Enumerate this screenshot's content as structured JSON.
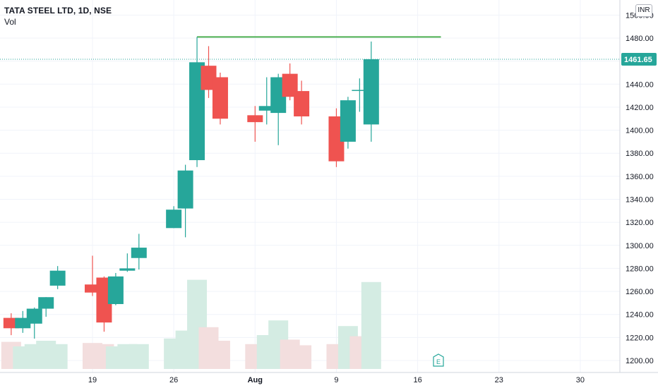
{
  "header": {
    "symbol": "TATA STEEL LTD, 1D, NSE",
    "volume_label": "Vol"
  },
  "currency": "INR",
  "last_price_label": "1461.65",
  "earnings_marker": "E",
  "colors": {
    "up": "#26a69a",
    "down": "#ef5350",
    "up_vol": "#d4ece3",
    "down_vol": "#f3dede",
    "resistance": "#4caf50",
    "last_price_dotted": "#26a69a",
    "grid": "#f0f3fa",
    "text": "#131722"
  },
  "chart_data": {
    "type": "candlestick",
    "title": "TATA STEEL LTD, 1D, NSE",
    "ylim": [
      1195,
      1508
    ],
    "y_ticks": [
      1200,
      1220,
      1240,
      1260,
      1280,
      1300,
      1320,
      1340,
      1360,
      1380,
      1400,
      1420,
      1440,
      1460,
      1480,
      1500
    ],
    "y_tick_labels": [
      "1200.00",
      "1220.00",
      "1240.00",
      "1260.00",
      "1280.00",
      "1300.00",
      "1320.00",
      "1340.00",
      "1360.00",
      "1380.00",
      "1400.00",
      "1420.00",
      "1440.00",
      "1460.00",
      "1480.00",
      "1500.00"
    ],
    "x_tick_labels": [
      {
        "label": "19",
        "date": "2021-07-19"
      },
      {
        "label": "26",
        "date": "2021-07-26"
      },
      {
        "label": "Aug",
        "date": "2021-08-02"
      },
      {
        "label": "9",
        "date": "2021-08-09"
      },
      {
        "label": "16",
        "date": "2021-08-16"
      },
      {
        "label": "23",
        "date": "2021-08-23"
      },
      {
        "label": "30",
        "date": "2021-08-30"
      }
    ],
    "candles": [
      {
        "date": "2021-07-12",
        "open": 1237,
        "high": 1241,
        "low": 1222,
        "close": 1228
      },
      {
        "date": "2021-07-13",
        "open": 1228,
        "high": 1243,
        "low": 1224,
        "close": 1237
      },
      {
        "date": "2021-07-14",
        "open": 1232,
        "high": 1246,
        "low": 1219,
        "close": 1245
      },
      {
        "date": "2021-07-15",
        "open": 1245,
        "high": 1255,
        "low": 1238,
        "close": 1255
      },
      {
        "date": "2021-07-16",
        "open": 1265,
        "high": 1282,
        "low": 1262,
        "close": 1278
      },
      {
        "date": "2021-07-19",
        "open": 1266,
        "high": 1291,
        "low": 1256,
        "close": 1259
      },
      {
        "date": "2021-07-20",
        "open": 1272,
        "high": 1273,
        "low": 1225,
        "close": 1233
      },
      {
        "date": "2021-07-21",
        "open": 1249,
        "high": 1276,
        "low": 1248,
        "close": 1273
      },
      {
        "date": "2021-07-22",
        "open": 1278,
        "high": 1293,
        "low": 1277,
        "close": 1280
      },
      {
        "date": "2021-07-23",
        "open": 1289,
        "high": 1310,
        "low": 1279,
        "close": 1298
      },
      {
        "date": "2021-07-26",
        "open": 1315,
        "high": 1334,
        "low": 1315,
        "close": 1331
      },
      {
        "date": "2021-07-27",
        "open": 1332,
        "high": 1370,
        "low": 1307,
        "close": 1365
      },
      {
        "date": "2021-07-28",
        "open": 1374,
        "high": 1481,
        "low": 1368,
        "close": 1459
      },
      {
        "date": "2021-07-29",
        "open": 1456,
        "high": 1473,
        "low": 1428,
        "close": 1435
      },
      {
        "date": "2021-07-30",
        "open": 1446,
        "high": 1450,
        "low": 1405,
        "close": 1410
      },
      {
        "date": "2021-08-02",
        "open": 1413,
        "high": 1421,
        "low": 1390,
        "close": 1407
      },
      {
        "date": "2021-08-03",
        "open": 1417,
        "high": 1446,
        "low": 1405,
        "close": 1421
      },
      {
        "date": "2021-08-04",
        "open": 1415,
        "high": 1449,
        "low": 1387,
        "close": 1446
      },
      {
        "date": "2021-08-05",
        "open": 1449,
        "high": 1458,
        "low": 1426,
        "close": 1429
      },
      {
        "date": "2021-08-06",
        "open": 1434,
        "high": 1443,
        "low": 1405,
        "close": 1412
      },
      {
        "date": "2021-08-09",
        "open": 1412,
        "high": 1419,
        "low": 1368,
        "close": 1373
      },
      {
        "date": "2021-08-10",
        "open": 1390,
        "high": 1429,
        "low": 1384,
        "close": 1426
      },
      {
        "date": "2021-08-11",
        "open": 1435,
        "high": 1445,
        "low": 1416,
        "close": 1435
      },
      {
        "date": "2021-08-12",
        "open": 1405,
        "high": 1477,
        "low": 1390,
        "close": 1461.65
      }
    ],
    "volume": [
      {
        "date": "2021-07-12",
        "value": 24,
        "dir": "down"
      },
      {
        "date": "2021-07-13",
        "value": 20,
        "dir": "up"
      },
      {
        "date": "2021-07-14",
        "value": 22,
        "dir": "up"
      },
      {
        "date": "2021-07-15",
        "value": 25,
        "dir": "up"
      },
      {
        "date": "2021-07-16",
        "value": 22,
        "dir": "up"
      },
      {
        "date": "2021-07-19",
        "value": 23,
        "dir": "down"
      },
      {
        "date": "2021-07-20",
        "value": 22,
        "dir": "down"
      },
      {
        "date": "2021-07-21",
        "value": 20,
        "dir": "up"
      },
      {
        "date": "2021-07-22",
        "value": 22,
        "dir": "up"
      },
      {
        "date": "2021-07-23",
        "value": 22,
        "dir": "up"
      },
      {
        "date": "2021-07-26",
        "value": 27,
        "dir": "up"
      },
      {
        "date": "2021-07-27",
        "value": 34,
        "dir": "up"
      },
      {
        "date": "2021-07-28",
        "value": 79,
        "dir": "up"
      },
      {
        "date": "2021-07-29",
        "value": 37,
        "dir": "down"
      },
      {
        "date": "2021-07-30",
        "value": 25,
        "dir": "down"
      },
      {
        "date": "2021-08-02",
        "value": 22,
        "dir": "down"
      },
      {
        "date": "2021-08-03",
        "value": 30,
        "dir": "up"
      },
      {
        "date": "2021-08-04",
        "value": 43,
        "dir": "up"
      },
      {
        "date": "2021-08-05",
        "value": 26,
        "dir": "down"
      },
      {
        "date": "2021-08-06",
        "value": 21,
        "dir": "down"
      },
      {
        "date": "2021-08-09",
        "value": 22,
        "dir": "down"
      },
      {
        "date": "2021-08-10",
        "value": 38,
        "dir": "up"
      },
      {
        "date": "2021-08-11",
        "value": 29,
        "dir": "down"
      },
      {
        "date": "2021-08-12",
        "value": 77,
        "dir": "up"
      }
    ],
    "resistance_line": {
      "y": 1481,
      "x_start": "2021-07-28",
      "x_end": "2021-08-18"
    },
    "last_price": 1461.65
  }
}
